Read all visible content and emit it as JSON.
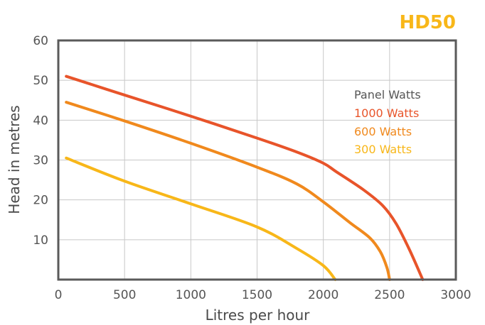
{
  "chart_data": {
    "type": "line",
    "title": "HD50",
    "xlabel": "Litres per hour",
    "ylabel": "Head in metres",
    "xlim": [
      0,
      3000
    ],
    "ylim": [
      0,
      60
    ],
    "x_ticks": [
      "0",
      "500",
      "1000",
      "1500",
      "2000",
      "2500",
      "3000"
    ],
    "y_ticks": [
      "60",
      "50",
      "40",
      "30",
      "20",
      "10"
    ],
    "grid": true,
    "legend": {
      "title": "Panel Watts",
      "placement": "right",
      "entries": [
        "1000 Watts",
        "600 Watts",
        "300 Watts"
      ]
    },
    "series": [
      {
        "name": "1000 Watts",
        "color": "#e8542a",
        "x": [
          60,
          500,
          1000,
          1500,
          1800,
          2000,
          2100,
          2300,
          2450,
          2550,
          2650,
          2750
        ],
        "y": [
          51,
          46.3,
          41,
          35.5,
          32,
          29.2,
          27,
          22.6,
          18.5,
          14,
          7.5,
          0
        ]
      },
      {
        "name": "600 Watts",
        "color": "#f0891d",
        "x": [
          60,
          500,
          1000,
          1500,
          1800,
          2000,
          2200,
          2350,
          2430,
          2480,
          2500
        ],
        "y": [
          44.5,
          39.8,
          34.2,
          28.2,
          24,
          19.5,
          14.3,
          10.5,
          7,
          3,
          0
        ]
      },
      {
        "name": "300 Watts",
        "color": "#f8b719",
        "x": [
          60,
          500,
          1000,
          1500,
          1800,
          2000,
          2090
        ],
        "y": [
          30.5,
          24.7,
          19,
          13.2,
          7.8,
          3.5,
          0
        ]
      }
    ]
  }
}
